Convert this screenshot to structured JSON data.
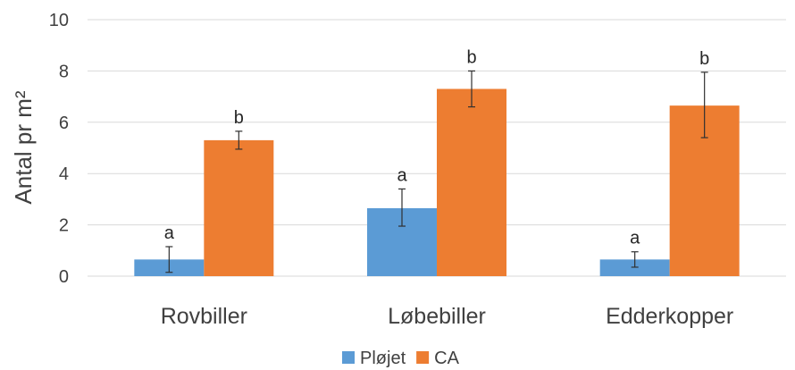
{
  "chart_data": {
    "type": "bar",
    "categories": [
      "Rovbiller",
      "Løbebiller",
      "Edderkopper"
    ],
    "series": [
      {
        "name": "Pløjet",
        "color": "#5b9bd5",
        "values": [
          0.65,
          2.65,
          0.65
        ],
        "error": [
          [
            0.15,
            1.15
          ],
          [
            1.95,
            3.4
          ],
          [
            0.35,
            0.95
          ]
        ],
        "labels": [
          "a",
          "a",
          "a"
        ]
      },
      {
        "name": "CA",
        "color": "#ed7d31",
        "values": [
          5.3,
          7.3,
          6.65
        ],
        "error": [
          [
            4.95,
            5.65
          ],
          [
            6.6,
            8.0
          ],
          [
            5.4,
            7.95
          ]
        ],
        "labels": [
          "b",
          "b",
          "b"
        ]
      }
    ],
    "ylabel": "Antal pr m²",
    "ylim": [
      0,
      10
    ],
    "yticks": [
      0,
      2,
      4,
      6,
      8,
      10
    ],
    "grid": true,
    "legend": "bottom"
  }
}
